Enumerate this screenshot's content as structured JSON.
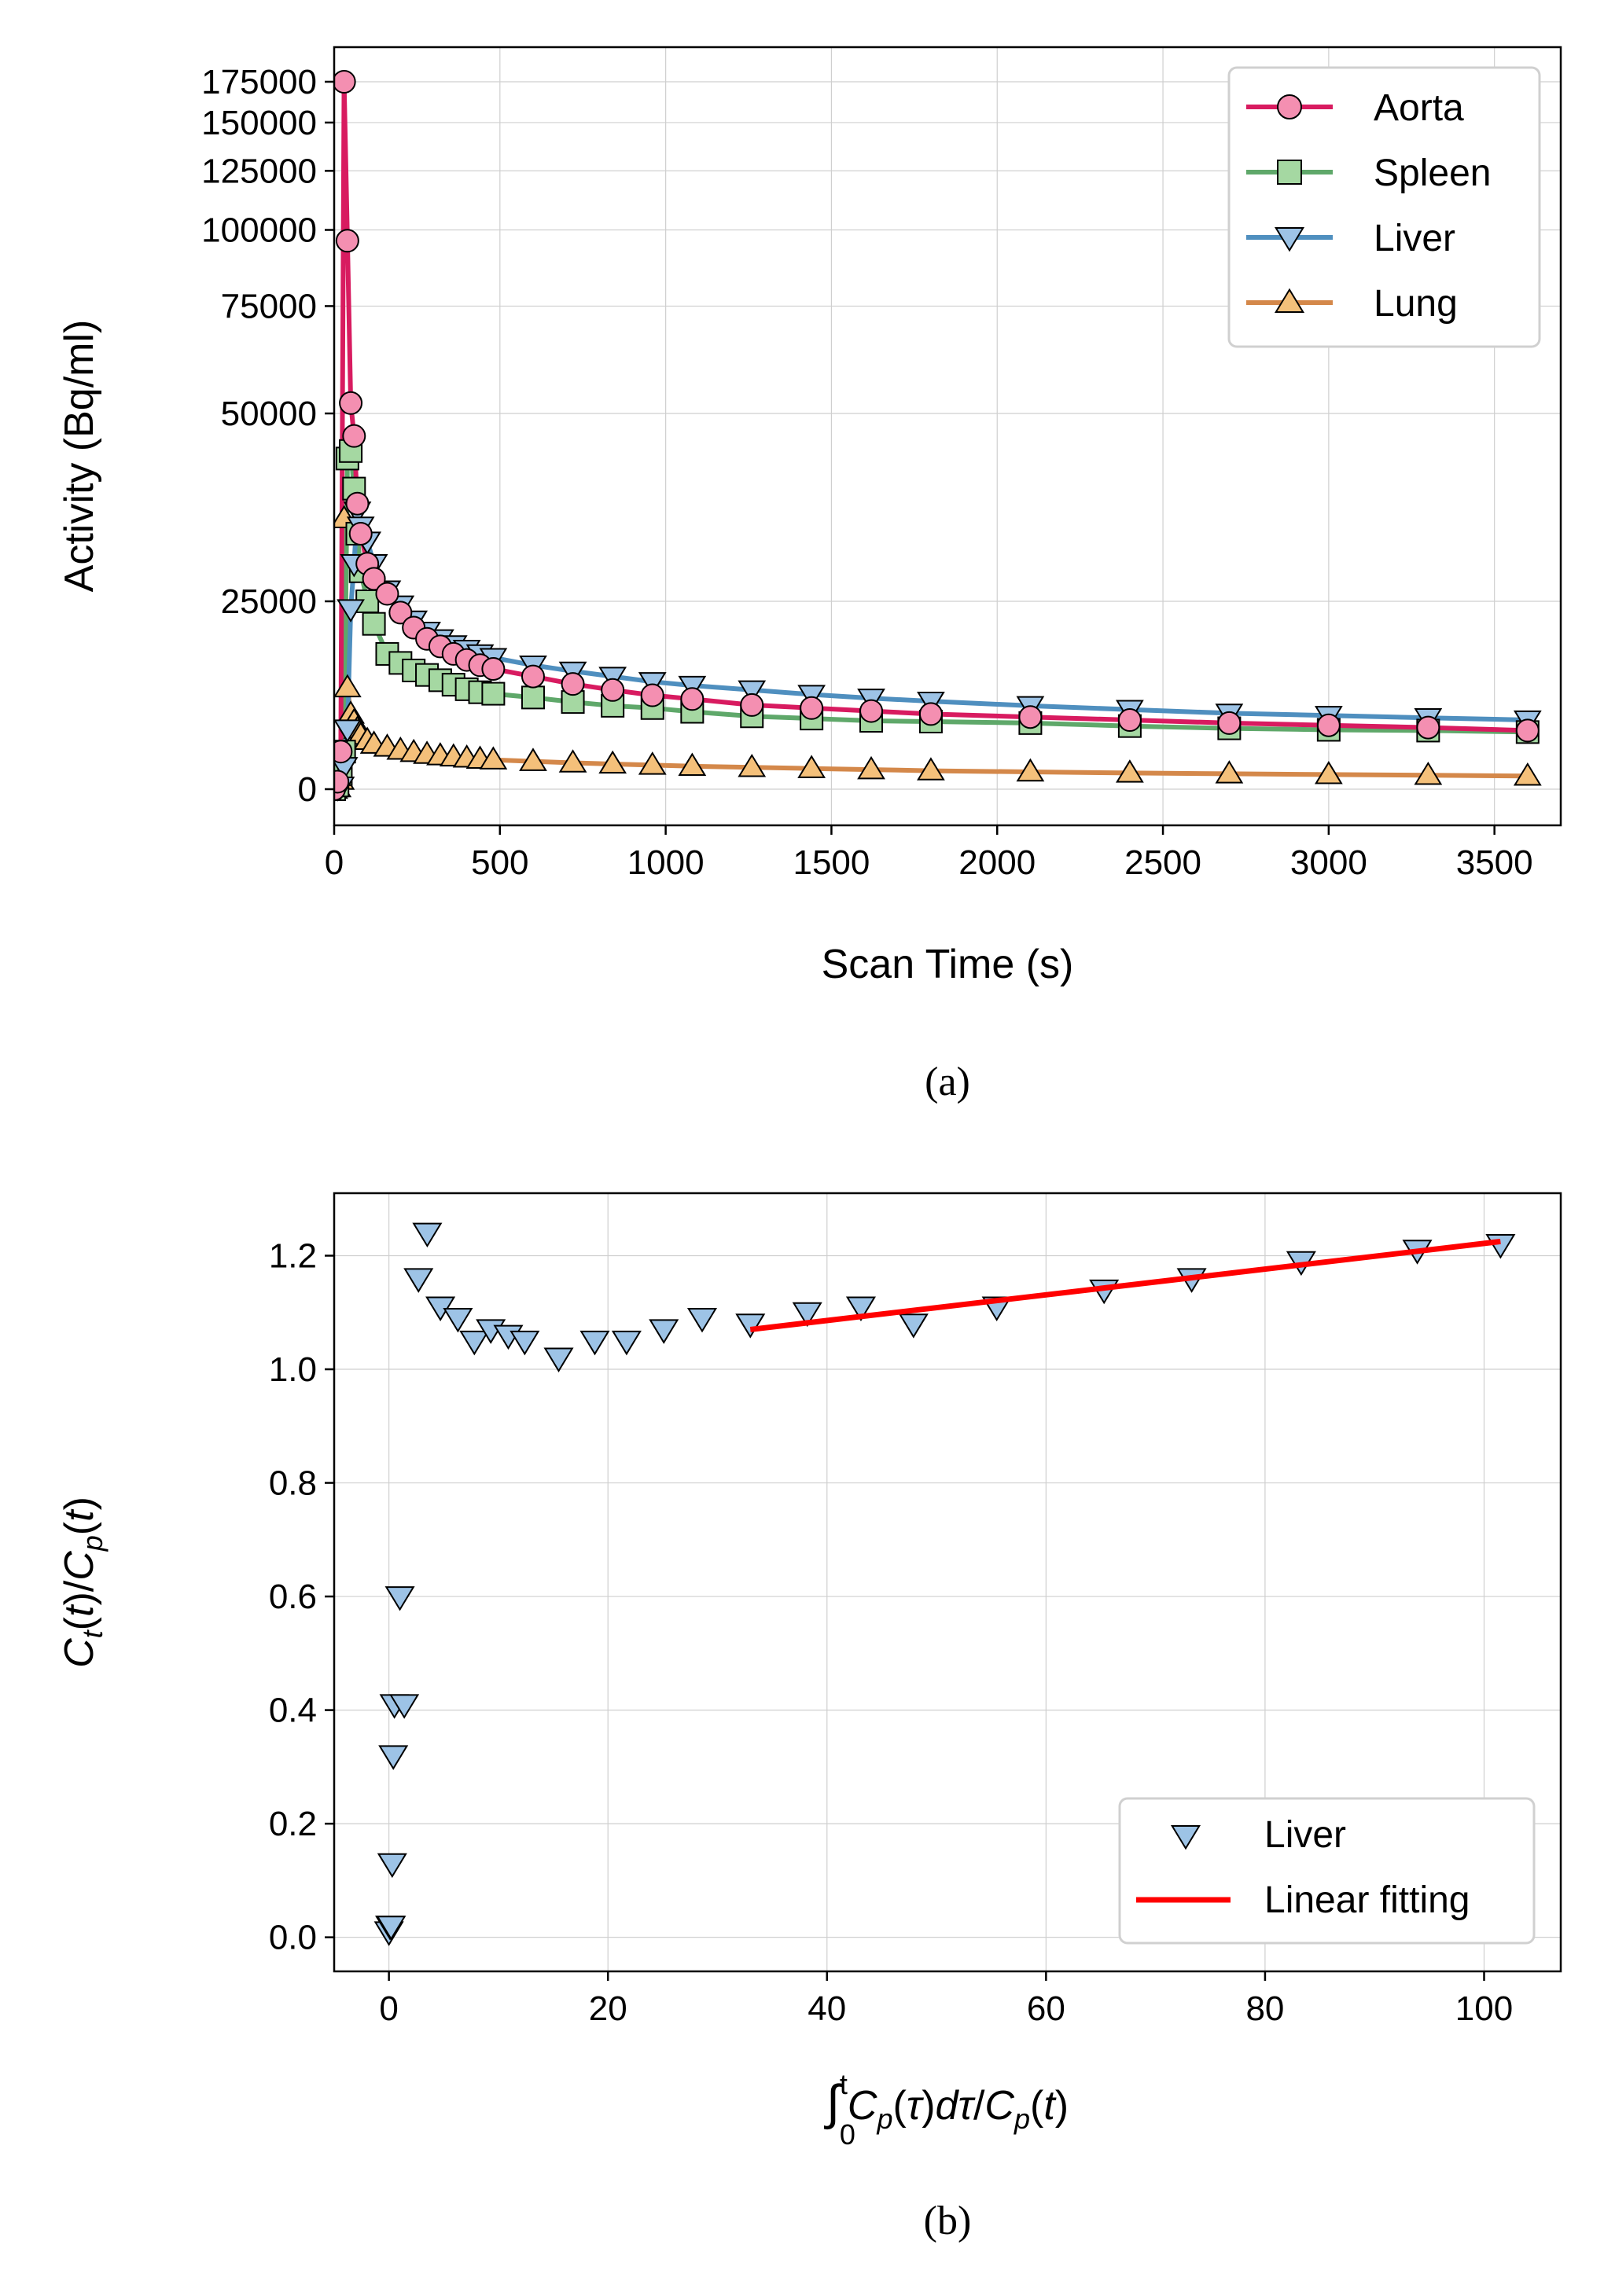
{
  "chart_data": [
    {
      "panel": "(a)",
      "type": "line",
      "caption": "(a)",
      "xlabel": "Scan Time (s)",
      "ylabel": "Activity (Bq/ml)",
      "xlim": [
        0,
        3700
      ],
      "ylim": [
        -8000,
        191000
      ],
      "y_scale": "symlog (compressed above 50000)",
      "xticks": [
        0,
        500,
        1000,
        1500,
        2000,
        2500,
        3000,
        3500
      ],
      "xtick_labels": [
        "0",
        "500",
        "1000",
        "1500",
        "2000",
        "2500",
        "3000",
        "3500"
      ],
      "yticks": [
        0,
        25000,
        50000,
        75000,
        100000,
        125000,
        150000,
        175000
      ],
      "ytick_labels": [
        "0",
        "25000",
        "50000",
        "75000",
        "100000",
        "125000",
        "150000",
        "175000"
      ],
      "grid": true,
      "legend_position": "top-right",
      "x": [
        0,
        10,
        20,
        30,
        40,
        50,
        60,
        70,
        80,
        100,
        120,
        160,
        200,
        240,
        280,
        320,
        360,
        400,
        440,
        480,
        600,
        720,
        840,
        960,
        1080,
        1260,
        1440,
        1620,
        1800,
        2100,
        2400,
        2700,
        3000,
        3300,
        3600
      ],
      "series": [
        {
          "name": "Aorta",
          "color": "#d81b60",
          "marker_fill": "#f48fb1",
          "marker": "circle",
          "values": [
            0,
            1000,
            5000,
            175000,
            96000,
            52000,
            47000,
            38000,
            34000,
            30000,
            28000,
            26000,
            23500,
            21500,
            20000,
            19000,
            18000,
            17200,
            16500,
            16000,
            15000,
            14000,
            13200,
            12500,
            12000,
            11200,
            10800,
            10400,
            10000,
            9600,
            9200,
            8800,
            8500,
            8200,
            7800
          ]
        },
        {
          "name": "Spleen",
          "color": "#5fa86a",
          "marker_fill": "#a5d8a2",
          "marker": "square",
          "values": [
            0,
            500,
            2000,
            5000,
            44000,
            45000,
            40000,
            34000,
            29000,
            25000,
            22000,
            18000,
            16800,
            15800,
            15200,
            14500,
            13900,
            13300,
            12900,
            12700,
            12200,
            11600,
            11100,
            10800,
            10300,
            9700,
            9400,
            9100,
            9000,
            8800,
            8400,
            8100,
            7900,
            7800,
            7600
          ]
        },
        {
          "name": "Liver",
          "color": "#4f8fbf",
          "marker_fill": "#9dc3e6",
          "marker": "triangle-down",
          "values": [
            0,
            150,
            400,
            3000,
            8000,
            24000,
            30000,
            37000,
            35000,
            33000,
            30000,
            26500,
            24500,
            22500,
            21000,
            20000,
            19200,
            18600,
            18000,
            17500,
            16500,
            15700,
            15000,
            14300,
            13800,
            13200,
            12600,
            12100,
            11700,
            11100,
            10600,
            10100,
            9800,
            9500,
            9200
          ]
        },
        {
          "name": "Lung",
          "color": "#d4884a",
          "marker_fill": "#f4c07a",
          "marker": "triangle-up",
          "values": [
            0,
            200,
            1200,
            36000,
            13500,
            10000,
            9000,
            8000,
            7200,
            6500,
            6000,
            5600,
            5200,
            4900,
            4650,
            4450,
            4300,
            4150,
            4000,
            3900,
            3700,
            3500,
            3350,
            3200,
            3050,
            2900,
            2750,
            2600,
            2450,
            2300,
            2150,
            2050,
            1950,
            1850,
            1750
          ]
        }
      ]
    },
    {
      "panel": "(b)",
      "type": "scatter",
      "caption": "(b)",
      "xlabel": "∫₀ᵗ Cp(τ)dτ / Cp(t)",
      "ylabel": "Ct(t) / Cp(t)",
      "xlim": [
        -5,
        107
      ],
      "ylim": [
        -0.06,
        1.31
      ],
      "xticks": [
        0,
        20,
        40,
        60,
        80,
        100
      ],
      "xtick_labels": [
        "0",
        "20",
        "40",
        "60",
        "80",
        "100"
      ],
      "yticks": [
        0.0,
        0.2,
        0.4,
        0.6,
        0.8,
        1.0,
        1.2
      ],
      "ytick_labels": [
        "0.0",
        "0.2",
        "0.4",
        "0.6",
        "0.8",
        "1.0",
        "1.2"
      ],
      "grid": true,
      "legend_position": "bottom-right",
      "series": [
        {
          "name": "Liver",
          "marker": "triangle-down",
          "marker_fill": "#9dc3e6",
          "x": [
            0.0,
            0.1,
            0.2,
            0.3,
            0.4,
            0.5,
            1.0,
            1.4,
            2.7,
            3.5,
            4.7,
            6.3,
            7.8,
            9.3,
            10.9,
            12.4,
            15.5,
            18.8,
            21.7,
            25.1,
            28.6,
            33.0,
            38.2,
            43.1,
            47.9,
            55.5,
            65.3,
            73.3,
            83.3,
            93.9,
            101.5
          ],
          "y": [
            0.01,
            0.02,
            0.02,
            0.13,
            0.32,
            0.41,
            0.6,
            0.41,
            1.16,
            1.24,
            1.11,
            1.09,
            1.05,
            1.07,
            1.06,
            1.05,
            1.02,
            1.05,
            1.05,
            1.07,
            1.09,
            1.08,
            1.1,
            1.11,
            1.08,
            1.11,
            1.14,
            1.16,
            1.19,
            1.21,
            1.22
          ]
        },
        {
          "name": "Linear fitting",
          "type": "line",
          "color": "#ff0000",
          "x": [
            33.0,
            101.5
          ],
          "y": [
            1.07,
            1.225
          ]
        }
      ]
    }
  ]
}
